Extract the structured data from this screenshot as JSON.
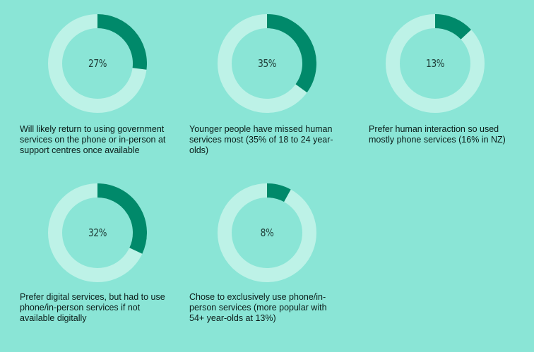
{
  "colors": {
    "background": "#8ae5d6",
    "track": "#bdf2e7",
    "fill": "#00896a"
  },
  "chart_data": [
    {
      "type": "pie",
      "variant": "donut",
      "value_percent": 27,
      "label": "27%",
      "caption": "Will likely return to using government services on the phone or in-person at support centres once available"
    },
    {
      "type": "pie",
      "variant": "donut",
      "value_percent": 35,
      "label": "35%",
      "caption": "Younger people have missed human services most (35% of 18 to 24 year-olds)"
    },
    {
      "type": "pie",
      "variant": "donut",
      "value_percent": 13,
      "label": "13%",
      "caption": "Prefer human interaction so used mostly phone services (16% in NZ)"
    },
    {
      "type": "pie",
      "variant": "donut",
      "value_percent": 32,
      "label": "32%",
      "caption": "Prefer digital services, but had to use phone/in-person services if not available digitally"
    },
    {
      "type": "pie",
      "variant": "donut",
      "value_percent": 8,
      "label": "8%",
      "caption": "Chose to exclusively use phone/in-person services (more popular with 54+ year-olds at 13%)"
    }
  ]
}
